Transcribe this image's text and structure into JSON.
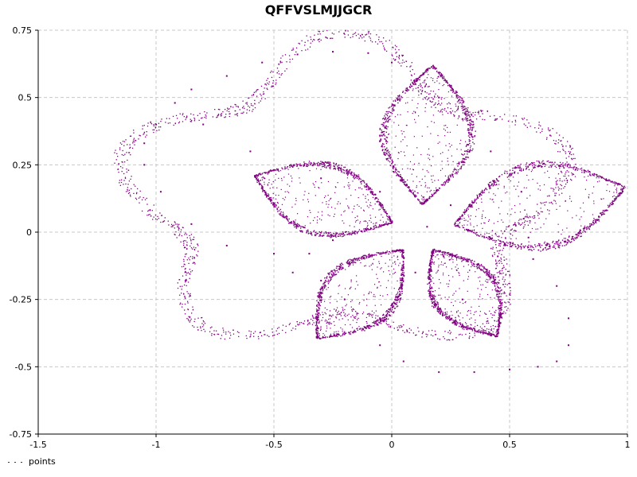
{
  "chart_data": {
    "type": "scatter",
    "title": "QFFVSLMJJGCR",
    "xlabel": "",
    "ylabel": "",
    "xlim": [
      -1.5,
      1.0
    ],
    "ylim": [
      -0.75,
      0.75
    ],
    "x_ticks": [
      "-1.5",
      "-1",
      "-0.5",
      "0",
      "0.5",
      "1"
    ],
    "x_tick_values": [
      -1.5,
      -1,
      -0.5,
      0,
      0.5,
      1
    ],
    "y_ticks": [
      "0.75",
      "0.5",
      "0.25",
      "0",
      "-0.25",
      "-0.5",
      "-0.75"
    ],
    "y_tick_values": [
      0.75,
      0.5,
      0.25,
      0,
      -0.25,
      -0.5,
      -0.75
    ],
    "grid": true,
    "legend_position": "bottom-left",
    "series": [
      {
        "name": "points",
        "color": "#800080",
        "description_points": [
          [
            -1.05,
            0.33
          ],
          [
            -1.0,
            0.4
          ],
          [
            -0.92,
            0.48
          ],
          [
            -0.85,
            0.53
          ],
          [
            -0.7,
            0.58
          ],
          [
            -0.55,
            0.63
          ],
          [
            -0.4,
            0.66
          ],
          [
            -0.25,
            0.67
          ],
          [
            -0.1,
            0.665
          ],
          [
            0.0,
            0.63
          ],
          [
            0.1,
            0.55
          ],
          [
            0.2,
            0.5
          ],
          [
            0.3,
            0.42
          ],
          [
            0.42,
            0.3
          ],
          [
            0.52,
            0.22
          ],
          [
            0.55,
            0.15
          ],
          [
            0.56,
            0.05
          ],
          [
            0.58,
            -0.02
          ],
          [
            0.6,
            -0.1
          ],
          [
            0.7,
            -0.2
          ],
          [
            0.75,
            -0.32
          ],
          [
            0.75,
            -0.42
          ],
          [
            0.7,
            -0.48
          ],
          [
            0.62,
            -0.5
          ],
          [
            0.5,
            -0.51
          ],
          [
            0.35,
            -0.52
          ],
          [
            0.2,
            -0.52
          ],
          [
            0.05,
            -0.48
          ],
          [
            -0.05,
            -0.42
          ],
          [
            -0.1,
            -0.35
          ],
          [
            -0.2,
            -0.25
          ],
          [
            -0.3,
            -0.18
          ],
          [
            -0.42,
            -0.15
          ],
          [
            -0.35,
            -0.08
          ],
          [
            -0.25,
            -0.03
          ],
          [
            -0.5,
            -0.08
          ],
          [
            -0.7,
            -0.05
          ],
          [
            -0.85,
            0.03
          ],
          [
            -0.98,
            0.15
          ],
          [
            -1.05,
            0.25
          ],
          [
            0.15,
            0.02
          ],
          [
            0.25,
            0.1
          ],
          [
            0.22,
            -0.09
          ],
          [
            0.45,
            -0.09
          ],
          [
            0.1,
            -0.15
          ],
          [
            -0.05,
            0.15
          ],
          [
            -0.3,
            0.2
          ],
          [
            -0.6,
            0.3
          ],
          [
            -0.8,
            0.4
          ],
          [
            0.3,
            -0.25
          ]
        ]
      }
    ]
  }
}
